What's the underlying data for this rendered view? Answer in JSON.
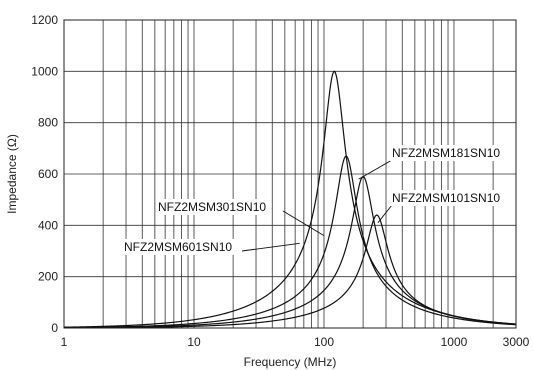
{
  "chart_data": {
    "type": "line",
    "xscale": "log",
    "xlim": [
      1,
      3000
    ],
    "ylim": [
      0,
      1200
    ],
    "grid": true,
    "xlabel": "Frequency (MHz)",
    "ylabel": "Impedance (Ω)",
    "x_ticks": [
      {
        "value": 1,
        "label": "1"
      },
      {
        "value": 10,
        "label": "10"
      },
      {
        "value": 100,
        "label": "100"
      },
      {
        "value": 1000,
        "label": "1000"
      },
      {
        "value": 3000,
        "label": "3000"
      }
    ],
    "y_ticks": [
      {
        "value": 0,
        "label": "0"
      },
      {
        "value": 200,
        "label": "200"
      },
      {
        "value": 400,
        "label": "400"
      },
      {
        "value": 600,
        "label": "600"
      },
      {
        "value": 800,
        "label": "800"
      },
      {
        "value": 1000,
        "label": "1000"
      },
      {
        "value": 1200,
        "label": "1200"
      }
    ],
    "series": [
      {
        "name": "NFZ2MSM601SN10",
        "peak_frequency": 120,
        "peak_impedance": 1000,
        "label_anchor": {
          "x": 65,
          "y": 330
        }
      },
      {
        "name": "NFZ2MSM301SN10",
        "peak_frequency": 148,
        "peak_impedance": 670,
        "label_anchor": {
          "x": 100,
          "y": 360
        }
      },
      {
        "name": "NFZ2MSM181SN10",
        "peak_frequency": 200,
        "peak_impedance": 590,
        "label_anchor": {
          "x": 185,
          "y": 580
        }
      },
      {
        "name": "NFZ2MSM101SN10",
        "peak_frequency": 255,
        "peak_impedance": 440,
        "label_anchor": {
          "x": 260,
          "y": 410
        }
      }
    ]
  }
}
